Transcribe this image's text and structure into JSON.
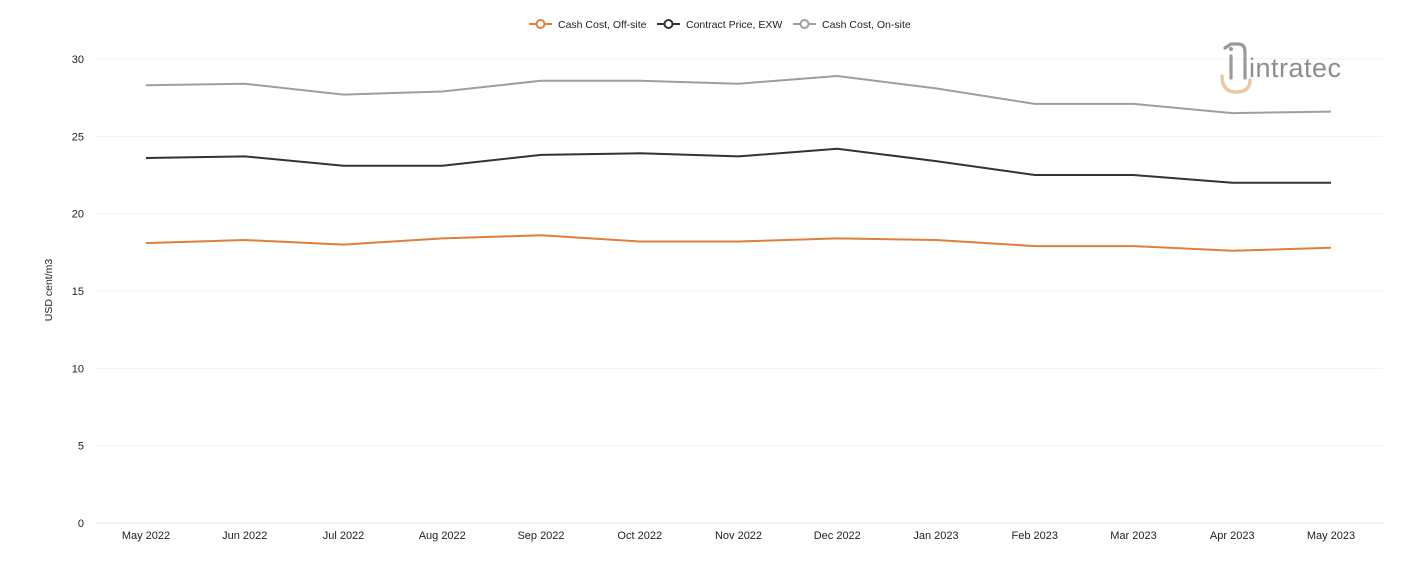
{
  "chart_data": {
    "type": "line",
    "title": "",
    "xlabel": "",
    "ylabel": "USD cent/m3",
    "ylim": [
      0,
      30
    ],
    "yticks": [
      0,
      5,
      10,
      15,
      20,
      25,
      30
    ],
    "grid": true,
    "legend_position": "top-center",
    "categories": [
      "May 2022",
      "Jun 2022",
      "Jul 2022",
      "Aug 2022",
      "Sep 2022",
      "Oct 2022",
      "Nov 2022",
      "Dec 2022",
      "Jan 2023",
      "Feb 2023",
      "Mar 2023",
      "Apr 2023",
      "May 2023"
    ],
    "series": [
      {
        "name": "Cash Cost, Off-site",
        "color": "#e07f3c",
        "values": [
          18.1,
          18.3,
          18.0,
          18.4,
          18.6,
          18.2,
          18.2,
          18.4,
          18.3,
          17.9,
          17.9,
          17.6,
          17.8
        ]
      },
      {
        "name": "Contract Price, EXW",
        "color": "#333333",
        "values": [
          23.6,
          23.7,
          23.1,
          23.1,
          23.8,
          23.9,
          23.7,
          24.2,
          23.4,
          22.5,
          22.5,
          22.0,
          22.0
        ]
      },
      {
        "name": "Cash Cost, On-site",
        "color": "#9e9e9e",
        "values": [
          28.3,
          28.4,
          27.7,
          27.9,
          28.6,
          28.6,
          28.4,
          28.9,
          28.1,
          27.1,
          27.1,
          26.5,
          26.6
        ]
      }
    ]
  },
  "logo": {
    "text": "intratec",
    "icon": "intratec-logo-icon",
    "accent_color": "#e8c9a8",
    "text_color": "#8e8e8e"
  }
}
